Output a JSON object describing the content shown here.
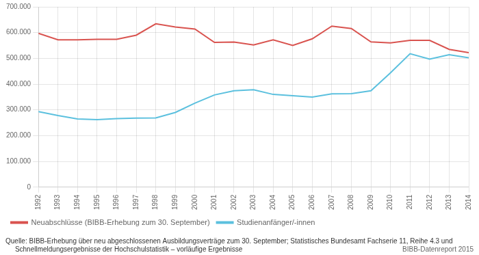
{
  "chart_data": {
    "type": "line",
    "x": [
      1992,
      1993,
      1994,
      1995,
      1996,
      1997,
      1998,
      1999,
      2000,
      2001,
      2002,
      2003,
      2004,
      2005,
      2006,
      2007,
      2008,
      2009,
      2010,
      2011,
      2012,
      2013,
      2014
    ],
    "series": [
      {
        "name": "Neuabschlüsse (BIBB-Erhebung zum 30. September)",
        "color": "#d9534f",
        "values": [
          597000,
          572000,
          572000,
          574000,
          574000,
          590000,
          634000,
          622000,
          614000,
          562000,
          563000,
          552000,
          572000,
          550000,
          576000,
          625000,
          616000,
          564000,
          560000,
          570000,
          570000,
          535000,
          522000
        ]
      },
      {
        "name": "Studienanfänger/-innen",
        "color": "#5bc0de",
        "values": [
          293000,
          278000,
          265000,
          262000,
          266000,
          268000,
          269000,
          290000,
          326000,
          358000,
          374000,
          378000,
          360000,
          355000,
          350000,
          362000,
          363000,
          374000,
          444000,
          518000,
          497000,
          514000,
          502000
        ]
      }
    ],
    "xlim": [
      1992,
      2014
    ],
    "xticks": [
      1992,
      1993,
      1994,
      1995,
      1996,
      1997,
      1998,
      1999,
      2000,
      2001,
      2002,
      2003,
      2004,
      2005,
      2006,
      2007,
      2008,
      2009,
      2010,
      2011,
      2012,
      2013,
      2014
    ],
    "ylim": [
      0,
      700000
    ],
    "yticks": [
      0,
      {
        "value": 100000,
        "label": "100.000"
      },
      {
        "value": 200000,
        "label": "200.000"
      },
      {
        "value": 300000,
        "label": "300.000"
      },
      {
        "value": 400000,
        "label": "400.000"
      },
      {
        "value": 500000,
        "label": "500.000"
      },
      {
        "value": 600000,
        "label": "600.000"
      },
      {
        "value": 700000,
        "label": "700.000"
      }
    ],
    "grid": true,
    "legend": "bottom",
    "annotations": [
      "Quelle: BIBB-Erhebung über neu abgeschlossenen Ausbildungsverträge zum 30. September; Statistisches Bundesamt Fachserie 11, Reihe 4.3 und\n     Schnellmeldungsergebnisse der Hochschulstatistik – vorläufige Ergebnisse",
      "BIBB-Datenreport 2015"
    ]
  }
}
